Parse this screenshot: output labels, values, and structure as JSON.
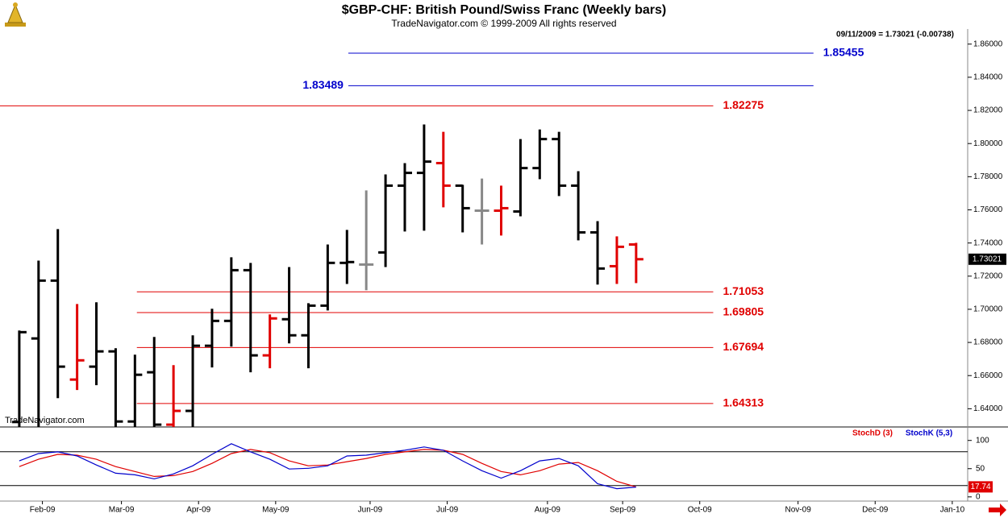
{
  "chart_data": [
    {
      "type": "ohlc",
      "title": "$GBP-CHF:  British Pound/Swiss Franc  (Weekly bars)",
      "subtitle": "TradeNavigator.com © 1999-2009 All rights reserved",
      "info": "09/11/2009 = 1.73021 (-0.00738)",
      "watermark": "TradeNavigator.com",
      "x": [
        0,
        1,
        2,
        3,
        4,
        5,
        6,
        7,
        8,
        9,
        10,
        11,
        12,
        13,
        14,
        15,
        16,
        17,
        18,
        19,
        20,
        21,
        22,
        23,
        24,
        25,
        26,
        27,
        28,
        29,
        30,
        31,
        32
      ],
      "open": [
        1.632,
        1.6824,
        1.7173,
        1.6576,
        1.6654,
        1.6746,
        1.6323,
        1.662,
        1.6304,
        1.6387,
        1.678,
        1.693,
        1.7236,
        1.6722,
        1.694,
        1.6843,
        1.7022,
        1.728,
        1.727,
        1.7343,
        1.7746,
        1.7823,
        1.7882,
        1.7746,
        1.7595,
        1.7595,
        1.759,
        1.7852,
        1.8027,
        1.7746,
        1.7464,
        1.726,
        1.7391
      ],
      "high": [
        1.6872,
        1.7294,
        1.7484,
        1.7032,
        1.7042,
        1.6765,
        1.6726,
        1.6833,
        1.6663,
        1.6843,
        1.7003,
        1.7314,
        1.728,
        1.6969,
        1.7255,
        1.7037,
        1.7391,
        1.7479,
        1.7717,
        1.7814,
        1.7882,
        1.8115,
        1.8071,
        1.7751,
        1.7789,
        1.7746,
        1.8027,
        1.8085,
        1.8071,
        1.7833,
        1.7532,
        1.744,
        1.7401
      ],
      "low": [
        1.629,
        1.629,
        1.6464,
        1.6513,
        1.6542,
        1.629,
        1.629,
        1.629,
        1.629,
        1.629,
        1.6649,
        1.6775,
        1.662,
        1.6644,
        1.6794,
        1.6644,
        1.6993,
        1.7153,
        1.7115,
        1.7255,
        1.7469,
        1.7474,
        1.7615,
        1.7464,
        1.7391,
        1.7445,
        1.7561,
        1.7785,
        1.7683,
        1.7416,
        1.7149,
        1.7153,
        1.7158
      ],
      "close": [
        1.6862,
        1.7173,
        1.6654,
        1.6692,
        1.6746,
        1.6323,
        1.6605,
        1.6304,
        1.6387,
        1.678,
        1.693,
        1.7236,
        1.6722,
        1.6945,
        1.6843,
        1.7022,
        1.728,
        1.7285,
        1.727,
        1.7746,
        1.7823,
        1.7891,
        1.7746,
        1.761,
        1.7595,
        1.761,
        1.7852,
        1.8027,
        1.7746,
        1.7464,
        1.7246,
        1.7377,
        1.73021
      ],
      "colors": [
        "#000",
        "#000",
        "#000",
        "#e00000",
        "#000",
        "#000",
        "#000",
        "#000",
        "#e00000",
        "#000",
        "#000",
        "#000",
        "#000",
        "#e00000",
        "#000",
        "#000",
        "#000",
        "#000",
        "#888888",
        "#000",
        "#000",
        "#000",
        "#e00000",
        "#000",
        "#888888",
        "#e00000",
        "#000",
        "#000",
        "#000",
        "#000",
        "#000",
        "#e00000",
        "#e00000"
      ],
      "xlim": [
        -1,
        49.2
      ],
      "ylim": [
        1.629,
        1.873
      ],
      "yticks": [
        {
          "value": 1.64,
          "label": "1.64000"
        },
        {
          "value": 1.66,
          "label": "1.66000"
        },
        {
          "value": 1.68,
          "label": "1.68000"
        },
        {
          "value": 1.7,
          "label": "1.70000"
        },
        {
          "value": 1.72,
          "label": "1.72000"
        },
        {
          "value": 1.74,
          "label": "1.74000"
        },
        {
          "value": 1.76,
          "label": "1.76000"
        },
        {
          "value": 1.78,
          "label": "1.78000"
        },
        {
          "value": 1.8,
          "label": "1.80000"
        },
        {
          "value": 1.82,
          "label": "1.82000"
        },
        {
          "value": 1.84,
          "label": "1.84000"
        },
        {
          "value": 1.86,
          "label": "1.86000"
        }
      ],
      "hlines": [
        {
          "value": 1.85455,
          "color": "#0000cc",
          "x0": 17.07,
          "x1": 41.2
        },
        {
          "value": 1.83489,
          "color": "#0000cc",
          "x0": 17.07,
          "x1": 41.2,
          "label_side": "left"
        },
        {
          "value": 1.82275,
          "color": "#e00000",
          "x0": -1,
          "x1": 36.0
        },
        {
          "value": 1.71053,
          "color": "#e00000",
          "x0": 6.1,
          "x1": 36.0
        },
        {
          "value": 1.69805,
          "color": "#e00000",
          "x0": 6.1,
          "x1": 36.0
        },
        {
          "value": 1.67694,
          "color": "#e00000",
          "x0": 6.1,
          "x1": 36.0
        },
        {
          "value": 1.64313,
          "color": "#e00000",
          "x0": 6.1,
          "x1": 36.0
        }
      ]
    },
    {
      "type": "line",
      "x": [
        0,
        1,
        2,
        3,
        4,
        5,
        6,
        7,
        8,
        9,
        10,
        11,
        12,
        13,
        14,
        15,
        16,
        17,
        18,
        19,
        20,
        21,
        22,
        23,
        24,
        25,
        26,
        27,
        28,
        29,
        30,
        31,
        32
      ],
      "series": [
        {
          "name": "StochD (3)",
          "color": "#e00000",
          "values": [
            53.6,
            66.7,
            75.4,
            73.9,
            66.7,
            53.6,
            44.9,
            36.2,
            37.7,
            44.9,
            59.4,
            76.8,
            84.1,
            78.3,
            63.8,
            55.1,
            56.5,
            62.3,
            68.1,
            75.4,
            79.7,
            84.1,
            82.6,
            75.4,
            59.4,
            44.9,
            39.1,
            46.4,
            58.0,
            60.9,
            46.4,
            27.5,
            17.74
          ]
        },
        {
          "name": "StochK (5,3)",
          "color": "#0000cc",
          "values": [
            63.8,
            76.8,
            79.7,
            72.5,
            56.5,
            42.0,
            39.1,
            31.9,
            40.6,
            55.1,
            75.4,
            94.2,
            79.7,
            66.7,
            49.3,
            50.7,
            55.1,
            72.5,
            73.9,
            78.3,
            82.6,
            88.4,
            82.6,
            63.8,
            46.4,
            33.3,
            46.4,
            63.8,
            68.1,
            55.1,
            23.2,
            14.5,
            17.4
          ]
        }
      ],
      "levels": [
        80,
        20
      ],
      "xlim": [
        -1,
        49.2
      ],
      "ylim": [
        -6,
        121
      ],
      "yticks": [
        0,
        50,
        100
      ],
      "xticks": [
        {
          "value": 1.2,
          "label": "Feb-09"
        },
        {
          "value": 5.3,
          "label": "Mar-09"
        },
        {
          "value": 9.3,
          "label": "Apr-09"
        },
        {
          "value": 13.3,
          "label": "May-09"
        },
        {
          "value": 18.2,
          "label": "Jun-09"
        },
        {
          "value": 22.2,
          "label": "Jul-09"
        },
        {
          "value": 27.4,
          "label": "Aug-09"
        },
        {
          "value": 31.3,
          "label": "Sep-09"
        },
        {
          "value": 35.3,
          "label": "Oct-09"
        },
        {
          "value": 40.4,
          "label": "Nov-09"
        },
        {
          "value": 44.4,
          "label": "Dec-09"
        },
        {
          "value": 48.4,
          "label": "Jan-10"
        }
      ]
    }
  ]
}
